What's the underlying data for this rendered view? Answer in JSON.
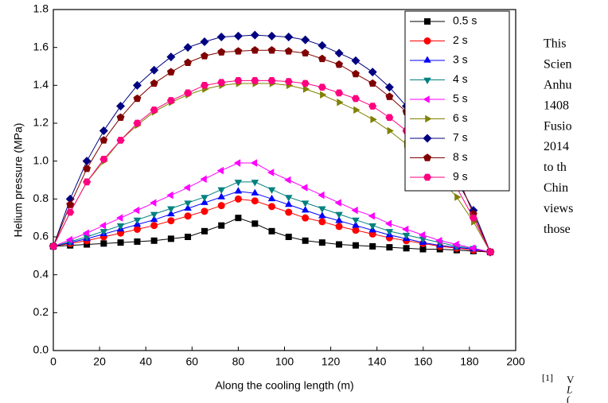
{
  "chart_data": {
    "type": "line",
    "x_label": "Along the cooling length (m)",
    "y_label": "Helium pressure (MPa)",
    "x": [
      0,
      7.3,
      14.5,
      21.8,
      29.1,
      36.3,
      43.6,
      50.9,
      58.2,
      65.4,
      72.7,
      80,
      87.2,
      94.5,
      101.8,
      109,
      116.3,
      123.6,
      130.8,
      138.1,
      145.4,
      152.7,
      159.9,
      167.2,
      174.5,
      181.7,
      189
    ],
    "series": [
      {
        "name": "0.5 s",
        "color": "#000000",
        "marker": "square",
        "values": [
          0.55,
          0.555,
          0.56,
          0.565,
          0.57,
          0.575,
          0.58,
          0.59,
          0.6,
          0.63,
          0.66,
          0.7,
          0.67,
          0.63,
          0.6,
          0.58,
          0.57,
          0.56,
          0.555,
          0.55,
          0.545,
          0.54,
          0.535,
          0.535,
          0.53,
          0.525,
          0.52
        ]
      },
      {
        "name": "2 s",
        "color": "#ff0000",
        "marker": "circle",
        "values": [
          0.55,
          0.565,
          0.58,
          0.6,
          0.62,
          0.64,
          0.66,
          0.685,
          0.71,
          0.735,
          0.765,
          0.8,
          0.79,
          0.76,
          0.73,
          0.7,
          0.68,
          0.655,
          0.635,
          0.615,
          0.595,
          0.58,
          0.565,
          0.55,
          0.54,
          0.53,
          0.52
        ]
      },
      {
        "name": "3 s",
        "color": "#0000ff",
        "marker": "triangle-up",
        "values": [
          0.55,
          0.57,
          0.59,
          0.615,
          0.64,
          0.665,
          0.69,
          0.72,
          0.75,
          0.78,
          0.81,
          0.84,
          0.83,
          0.8,
          0.77,
          0.74,
          0.71,
          0.685,
          0.66,
          0.635,
          0.61,
          0.59,
          0.57,
          0.555,
          0.545,
          0.535,
          0.52
        ]
      },
      {
        "name": "4 s",
        "color": "#008080",
        "marker": "triangle-down",
        "values": [
          0.55,
          0.575,
          0.6,
          0.63,
          0.66,
          0.69,
          0.72,
          0.75,
          0.78,
          0.81,
          0.85,
          0.89,
          0.89,
          0.85,
          0.81,
          0.78,
          0.75,
          0.72,
          0.69,
          0.66,
          0.63,
          0.61,
          0.59,
          0.57,
          0.55,
          0.54,
          0.52
        ]
      },
      {
        "name": "5 s",
        "color": "#ff00ff",
        "marker": "triangle-left",
        "values": [
          0.55,
          0.585,
          0.62,
          0.66,
          0.7,
          0.74,
          0.78,
          0.82,
          0.86,
          0.905,
          0.95,
          0.99,
          0.99,
          0.94,
          0.9,
          0.86,
          0.82,
          0.78,
          0.74,
          0.71,
          0.67,
          0.64,
          0.61,
          0.58,
          0.56,
          0.54,
          0.52
        ]
      },
      {
        "name": "6 s",
        "color": "#808000",
        "marker": "triangle-right",
        "values": [
          0.55,
          0.73,
          0.89,
          1.0,
          1.11,
          1.19,
          1.26,
          1.31,
          1.35,
          1.38,
          1.4,
          1.41,
          1.41,
          1.41,
          1.4,
          1.38,
          1.35,
          1.31,
          1.27,
          1.22,
          1.16,
          1.09,
          1.0,
          0.91,
          0.81,
          0.68,
          0.52
        ]
      },
      {
        "name": "7 s",
        "color": "#000080",
        "marker": "diamond",
        "values": [
          0.55,
          0.8,
          1.0,
          1.16,
          1.29,
          1.4,
          1.48,
          1.55,
          1.6,
          1.63,
          1.655,
          1.66,
          1.665,
          1.66,
          1.655,
          1.64,
          1.61,
          1.57,
          1.53,
          1.47,
          1.39,
          1.29,
          1.17,
          1.03,
          0.9,
          0.74,
          0.52
        ]
      },
      {
        "name": "8 s",
        "color": "#800000",
        "marker": "pentagon",
        "values": [
          0.55,
          0.77,
          0.96,
          1.11,
          1.23,
          1.33,
          1.41,
          1.47,
          1.52,
          1.555,
          1.575,
          1.58,
          1.585,
          1.585,
          1.58,
          1.57,
          1.54,
          1.51,
          1.46,
          1.41,
          1.34,
          1.26,
          1.16,
          1.05,
          0.93,
          0.72,
          0.52
        ]
      },
      {
        "name": "9 s",
        "color": "#ff0080",
        "marker": "hexagon",
        "values": [
          0.55,
          0.73,
          0.89,
          1.01,
          1.11,
          1.2,
          1.27,
          1.32,
          1.36,
          1.4,
          1.415,
          1.425,
          1.425,
          1.425,
          1.42,
          1.41,
          1.39,
          1.36,
          1.33,
          1.29,
          1.23,
          1.16,
          1.08,
          0.98,
          0.86,
          0.7,
          0.52
        ]
      }
    ],
    "xlim": [
      0,
      200
    ],
    "xticks": [
      0,
      20,
      40,
      60,
      80,
      100,
      120,
      140,
      160,
      180,
      200
    ],
    "ylim": [
      0,
      1.8
    ],
    "yticks": [
      {
        "value": 0,
        "label": "0.0"
      },
      0.2,
      0.4,
      0.6,
      0.8,
      {
        "value": 1,
        "label": "1.0"
      },
      1.2,
      1.4,
      1.6,
      1.8
    ],
    "legend": "upper-right"
  },
  "document": {
    "lines": [
      "This",
      "Scien",
      "Anhu",
      "1408",
      "Fusio",
      "2014",
      "to th",
      "Chin",
      "views",
      "those"
    ],
    "footnote": {
      "number": "[1]",
      "lines": [
        "V",
        "L",
        "("
      ]
    }
  }
}
